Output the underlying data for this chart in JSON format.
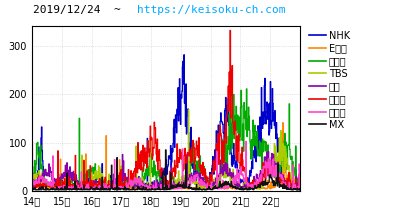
{
  "title_black": "2019/12/24  ~  ",
  "title_cyan": "https://keisoku-ch.com",
  "xlim": [
    14,
    23
  ],
  "ylim": [
    0,
    340
  ],
  "yticks": [
    0,
    100,
    200,
    300
  ],
  "xticks": [
    14,
    15,
    16,
    17,
    18,
    19,
    20,
    21,
    22
  ],
  "xtick_labels": [
    "14時",
    "15時",
    "16時",
    "17時",
    "18時",
    "19時",
    "20時",
    "21時",
    "22時"
  ],
  "background": "#ffffff",
  "grid_color": "#bbbbbb",
  "series_names": [
    "NHK",
    "Eテレ",
    "日テレ",
    "TBS",
    "フジ",
    "テレ朝",
    "テレ海",
    "MX"
  ],
  "series_colors": [
    "#0000cc",
    "#ff8800",
    "#00aa00",
    "#aacc00",
    "#8800aa",
    "#ee0000",
    "#ff44cc",
    "#111111"
  ],
  "legend_fontsize": 7,
  "tick_fontsize": 7,
  "title_fontsize": 8,
  "lw": 0.9
}
